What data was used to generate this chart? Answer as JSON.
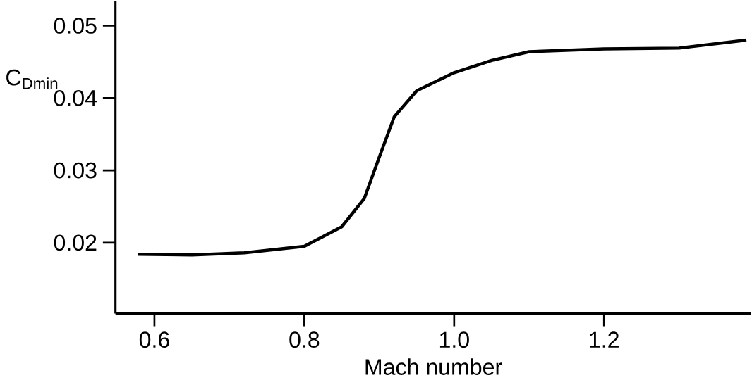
{
  "chart_data": {
    "type": "line",
    "xlabel": "Mach number",
    "ylabel": "C$_{Dmin}$",
    "x": [
      0.578,
      0.65,
      0.72,
      0.8,
      0.85,
      0.88,
      0.9,
      0.92,
      0.95,
      1.0,
      1.05,
      1.1,
      1.2,
      1.3,
      1.39
    ],
    "series": [
      {
        "color": "#000000",
        "values": [
          0.0184,
          0.0183,
          0.0186,
          0.0195,
          0.0222,
          0.0261,
          0.0318,
          0.0374,
          0.041,
          0.0435,
          0.0452,
          0.0464,
          0.0468,
          0.0469,
          0.048
        ]
      }
    ],
    "xlim": [
      0.548,
      1.396
    ],
    "ylim": [
      0.0102,
      0.0534
    ],
    "xticks": [
      0.6,
      0.8,
      {
        "value": 1.0,
        "label": "1.0"
      },
      1.2
    ],
    "yticks": [
      0.02,
      0.03,
      0.04,
      0.05
    ],
    "marker": "none",
    "line_style": "solid"
  }
}
